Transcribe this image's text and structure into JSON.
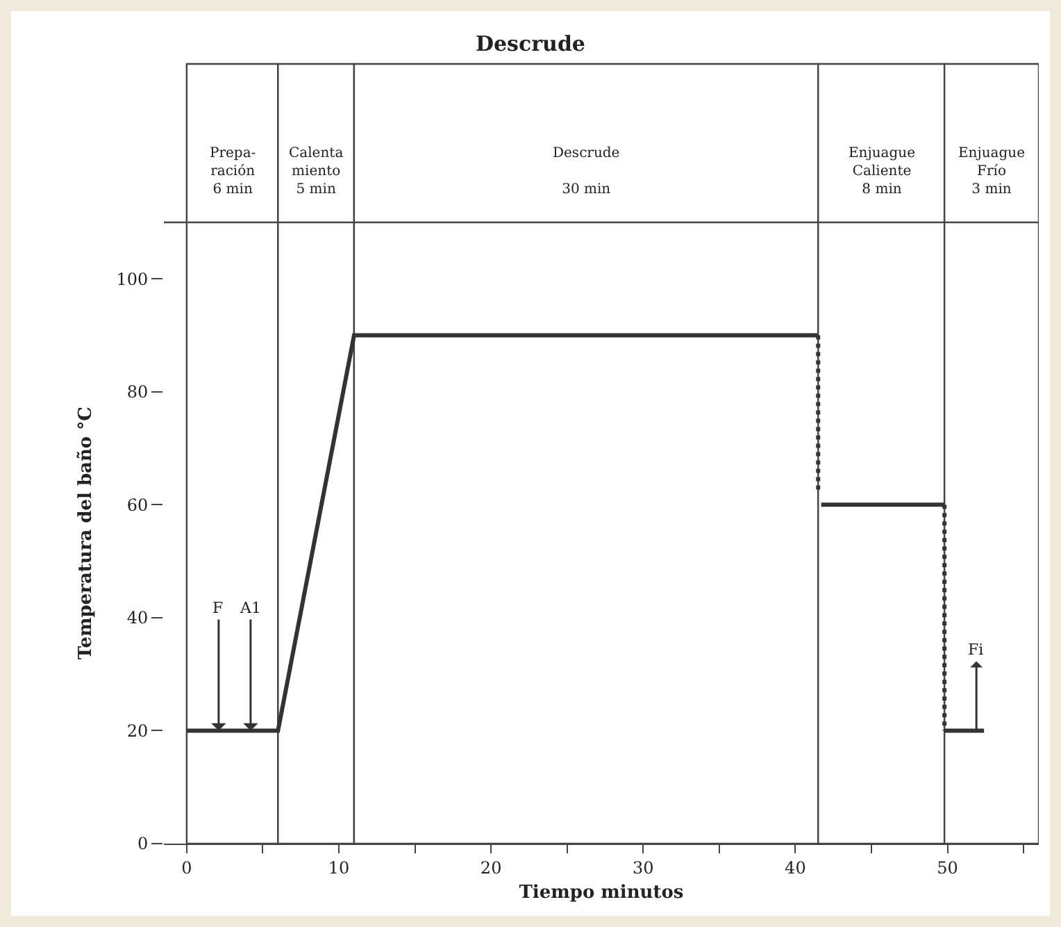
{
  "chart_data": {
    "type": "line",
    "title": "Descrude",
    "xlabel": "Tiempo minutos",
    "ylabel": "Temperatura del baño °C",
    "xlim": [
      -1.5,
      56
    ],
    "ylim": [
      0,
      110
    ],
    "xticks": [
      0,
      {
        "value": 5,
        "label": null
      },
      10,
      {
        "value": 15,
        "label": null
      },
      20,
      {
        "value": 25,
        "label": null
      },
      30,
      {
        "value": 35,
        "label": null
      },
      40,
      {
        "value": 45,
        "label": null
      },
      50,
      {
        "value": 55,
        "label": null
      }
    ],
    "yticks": [
      0,
      20,
      40,
      60,
      80,
      100
    ],
    "grid": false,
    "marker": "none",
    "series": [
      {
        "color": "#333333",
        "line_style": "solid",
        "x": [
          0,
          6,
          11,
          41.5
        ],
        "values": [
          20,
          20,
          90,
          90
        ]
      },
      {
        "color": "#333333",
        "line_style": "dotted",
        "x": [
          41.5,
          41.5
        ],
        "values": [
          90,
          62
        ]
      },
      {
        "color": "#333333",
        "line_style": "solid",
        "x": [
          41.7,
          49.8
        ],
        "values": [
          60,
          60
        ]
      },
      {
        "color": "#333333",
        "line_style": "dotted",
        "x": [
          49.8,
          49.8
        ],
        "values": [
          60,
          20
        ]
      },
      {
        "color": "#333333",
        "line_style": "solid",
        "x": [
          49.8,
          52.4
        ],
        "values": [
          20,
          20
        ]
      }
    ],
    "bands": [
      {
        "axis": "x",
        "from": 0,
        "to": 6,
        "label": "Prepa-\nración\n6 min",
        "color": "#ffffff"
      },
      {
        "axis": "x",
        "from": 6,
        "to": 11,
        "label": "Calenta\nmiento\n5 min",
        "color": "#ffffff"
      },
      {
        "axis": "x",
        "from": 11,
        "to": 41.5,
        "label": "Descrude\n\n30 min",
        "color": "#ffffff"
      },
      {
        "axis": "x",
        "from": 41.5,
        "to": 49.8,
        "label": "Enjuague\nCaliente\n8 min",
        "color": "#ffffff"
      },
      {
        "axis": "x",
        "from": 49.8,
        "to": 56,
        "label": "Enjuague\nFrío\n3 min",
        "color": "#ffffff"
      }
    ],
    "annotations": [
      {
        "text": "F",
        "x": 2.1,
        "y": 20
      },
      {
        "text": "A1",
        "x": 4.2,
        "y": 20
      },
      {
        "text": "Fi",
        "x": 51.9,
        "y": 20
      }
    ]
  }
}
